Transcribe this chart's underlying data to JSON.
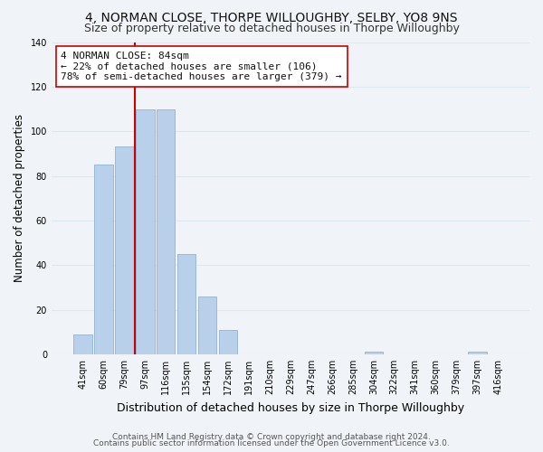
{
  "title1": "4, NORMAN CLOSE, THORPE WILLOUGHBY, SELBY, YO8 9NS",
  "title2": "Size of property relative to detached houses in Thorpe Willoughby",
  "xlabel": "Distribution of detached houses by size in Thorpe Willoughby",
  "ylabel": "Number of detached properties",
  "bar_labels": [
    "41sqm",
    "60sqm",
    "79sqm",
    "97sqm",
    "116sqm",
    "135sqm",
    "154sqm",
    "172sqm",
    "191sqm",
    "210sqm",
    "229sqm",
    "247sqm",
    "266sqm",
    "285sqm",
    "304sqm",
    "322sqm",
    "341sqm",
    "360sqm",
    "379sqm",
    "397sqm",
    "416sqm"
  ],
  "bar_values": [
    9,
    85,
    93,
    110,
    110,
    45,
    26,
    11,
    0,
    0,
    0,
    0,
    0,
    0,
    1,
    0,
    0,
    0,
    0,
    1,
    0
  ],
  "bar_color": "#b8d0ea",
  "bar_edge_color": "#9ab8d8",
  "ylim": [
    0,
    140
  ],
  "yticks": [
    0,
    20,
    40,
    60,
    80,
    100,
    120,
    140
  ],
  "property_line_color": "#cc0000",
  "annotation_line1": "4 NORMAN CLOSE: 84sqm",
  "annotation_line2": "← 22% of detached houses are smaller (106)",
  "annotation_line3": "78% of semi-detached houses are larger (379) →",
  "footer1": "Contains HM Land Registry data © Crown copyright and database right 2024.",
  "footer2": "Contains public sector information licensed under the Open Government Licence v3.0.",
  "bg_color": "#f0f4f8",
  "grid_color": "#dce8f0",
  "title1_fontsize": 10,
  "title2_fontsize": 9,
  "xlabel_fontsize": 9,
  "ylabel_fontsize": 8.5,
  "tick_fontsize": 7,
  "footer_fontsize": 6.5,
  "annotation_fontsize": 8
}
